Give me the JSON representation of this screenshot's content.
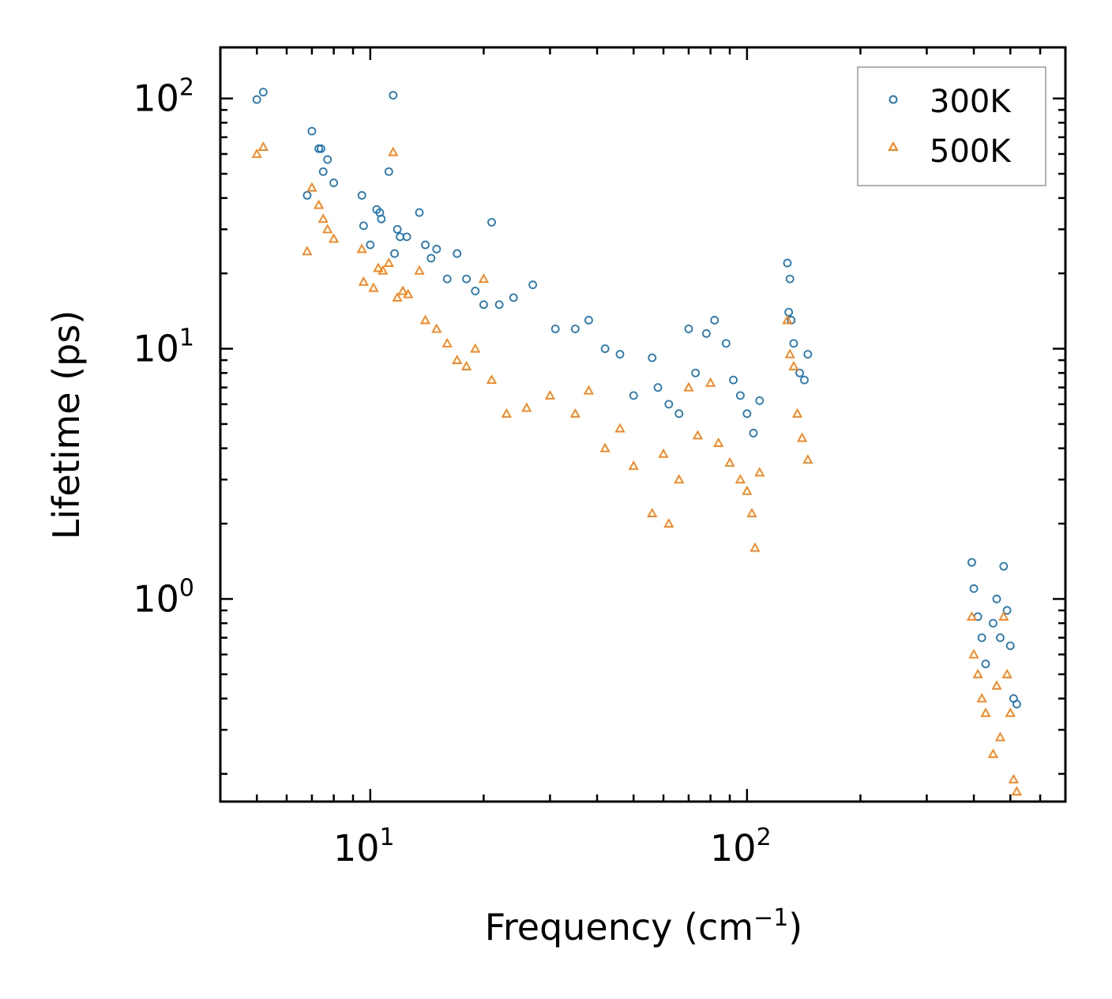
{
  "chart_data": {
    "type": "scatter",
    "title": "",
    "xlabel": "Frequency (cm",
    "xlabel_superscript": "−1",
    "xlabel_close": ")",
    "ylabel": "Lifetime (ps)",
    "xscale": "log",
    "yscale": "log",
    "xlim": [
      4.0,
      700
    ],
    "ylim": [
      0.155,
      160
    ],
    "legend_position": "top-right",
    "x_ticks": [
      {
        "value": 10,
        "base": "10",
        "exp": "1"
      },
      {
        "value": 100,
        "base": "10",
        "exp": "2"
      }
    ],
    "y_ticks": [
      {
        "value": 1,
        "base": "10",
        "exp": "0"
      },
      {
        "value": 10,
        "base": "10",
        "exp": "1"
      },
      {
        "value": 100,
        "base": "10",
        "exp": "2"
      }
    ],
    "series": [
      {
        "name": "300K",
        "marker": "circle",
        "color": "#1f77b4",
        "points": [
          [
            5.0,
            99
          ],
          [
            5.2,
            106
          ],
          [
            6.8,
            41
          ],
          [
            7.0,
            74
          ],
          [
            7.3,
            63
          ],
          [
            7.4,
            63
          ],
          [
            7.5,
            51
          ],
          [
            7.7,
            57
          ],
          [
            8.0,
            46
          ],
          [
            9.5,
            41
          ],
          [
            9.6,
            31
          ],
          [
            10.0,
            26
          ],
          [
            10.4,
            36
          ],
          [
            10.6,
            35
          ],
          [
            10.7,
            33
          ],
          [
            11.2,
            51
          ],
          [
            11.5,
            103
          ],
          [
            11.6,
            24
          ],
          [
            11.8,
            30
          ],
          [
            12.0,
            28
          ],
          [
            12.5,
            28
          ],
          [
            13.5,
            35
          ],
          [
            14.0,
            26
          ],
          [
            14.5,
            23
          ],
          [
            15.0,
            25
          ],
          [
            16.0,
            19
          ],
          [
            17.0,
            24
          ],
          [
            18.0,
            19
          ],
          [
            19.0,
            17
          ],
          [
            20.0,
            15
          ],
          [
            21.0,
            32
          ],
          [
            22.0,
            15
          ],
          [
            24.0,
            16
          ],
          [
            27.0,
            18
          ],
          [
            31.0,
            12
          ],
          [
            35.0,
            12
          ],
          [
            38.0,
            13
          ],
          [
            42.0,
            10
          ],
          [
            46.0,
            9.5
          ],
          [
            50.0,
            6.5
          ],
          [
            56.0,
            9.2
          ],
          [
            58.0,
            7.0
          ],
          [
            62.0,
            6.0
          ],
          [
            66.0,
            5.5
          ],
          [
            70.0,
            12
          ],
          [
            73.0,
            8.0
          ],
          [
            78.0,
            11.5
          ],
          [
            82.0,
            13
          ],
          [
            88.0,
            10.5
          ],
          [
            92.0,
            7.5
          ],
          [
            96.0,
            6.5
          ],
          [
            100.0,
            5.5
          ],
          [
            104.0,
            4.6
          ],
          [
            108.0,
            6.2
          ],
          [
            128.0,
            22
          ],
          [
            129.0,
            14
          ],
          [
            130.0,
            19
          ],
          [
            131.0,
            13
          ],
          [
            133.0,
            10.5
          ],
          [
            138.0,
            8.0
          ],
          [
            142.0,
            7.5
          ],
          [
            145.0,
            9.5
          ],
          [
            395.0,
            1.4
          ],
          [
            400.0,
            1.1
          ],
          [
            410.0,
            0.85
          ],
          [
            420.0,
            0.7
          ],
          [
            430.0,
            0.55
          ],
          [
            450.0,
            0.8
          ],
          [
            460.0,
            1.0
          ],
          [
            470.0,
            0.7
          ],
          [
            480.0,
            1.35
          ],
          [
            490.0,
            0.9
          ],
          [
            500.0,
            0.65
          ],
          [
            510.0,
            0.4
          ],
          [
            520.0,
            0.38
          ]
        ]
      },
      {
        "name": "500K",
        "marker": "triangle",
        "color": "#ff7f0e",
        "points": [
          [
            5.0,
            60
          ],
          [
            5.2,
            64
          ],
          [
            6.8,
            24.5
          ],
          [
            7.0,
            44
          ],
          [
            7.3,
            37.5
          ],
          [
            7.5,
            33
          ],
          [
            7.7,
            30
          ],
          [
            8.0,
            27.5
          ],
          [
            9.5,
            25
          ],
          [
            9.6,
            18.5
          ],
          [
            10.2,
            17.5
          ],
          [
            10.5,
            21
          ],
          [
            10.8,
            20.5
          ],
          [
            11.2,
            22
          ],
          [
            11.5,
            61
          ],
          [
            11.8,
            16
          ],
          [
            12.2,
            17
          ],
          [
            12.6,
            16.5
          ],
          [
            13.5,
            20.5
          ],
          [
            14.0,
            13
          ],
          [
            15.0,
            12
          ],
          [
            16.0,
            10.5
          ],
          [
            17.0,
            9
          ],
          [
            18.0,
            8.5
          ],
          [
            19.0,
            10
          ],
          [
            20.0,
            19
          ],
          [
            21.0,
            7.5
          ],
          [
            23.0,
            5.5
          ],
          [
            26.0,
            5.8
          ],
          [
            30.0,
            6.5
          ],
          [
            35.0,
            5.5
          ],
          [
            38.0,
            6.8
          ],
          [
            42.0,
            4.0
          ],
          [
            46.0,
            4.8
          ],
          [
            50.0,
            3.4
          ],
          [
            56.0,
            2.2
          ],
          [
            60.0,
            3.8
          ],
          [
            62.0,
            2.0
          ],
          [
            66.0,
            3.0
          ],
          [
            70.0,
            7.0
          ],
          [
            74.0,
            4.5
          ],
          [
            80.0,
            7.3
          ],
          [
            84.0,
            4.2
          ],
          [
            90.0,
            3.5
          ],
          [
            96.0,
            3.0
          ],
          [
            100.0,
            2.7
          ],
          [
            103.0,
            2.2
          ],
          [
            105.0,
            1.6
          ],
          [
            108.0,
            3.2
          ],
          [
            128.0,
            13
          ],
          [
            130.0,
            9.5
          ],
          [
            133.0,
            8.5
          ],
          [
            136.0,
            5.5
          ],
          [
            140.0,
            4.4
          ],
          [
            145.0,
            3.6
          ],
          [
            395.0,
            0.85
          ],
          [
            400.0,
            0.6
          ],
          [
            410.0,
            0.5
          ],
          [
            420.0,
            0.4
          ],
          [
            430.0,
            0.35
          ],
          [
            450.0,
            0.24
          ],
          [
            460.0,
            0.45
          ],
          [
            470.0,
            0.28
          ],
          [
            480.0,
            0.85
          ],
          [
            490.0,
            0.5
          ],
          [
            500.0,
            0.35
          ],
          [
            510.0,
            0.19
          ],
          [
            520.0,
            0.17
          ]
        ]
      }
    ]
  }
}
